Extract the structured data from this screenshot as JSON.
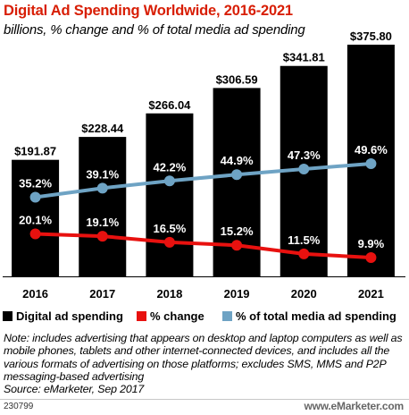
{
  "title": "Digital Ad Spending Worldwide, 2016-2021",
  "subtitle": "billions, % change and % of total media ad spending",
  "legend": {
    "spending": "Digital ad spending",
    "change": "% change",
    "share": "% of total media ad spending"
  },
  "note": "Note: includes advertising that appears on desktop and laptop computers as well as mobile phones, tablets and other internet-connected devices, and includes all the various formats of advertising on those platforms; excludes SMS, MMS and P2P messaging-based advertising",
  "source": "Source: eMarketer, Sep 2017",
  "footer": {
    "id": "230799",
    "brand": "www.eMarketer.com"
  },
  "colors": {
    "bar": "#000000",
    "change": "#e8110f",
    "share": "#6ea3c4",
    "title": "#d81e05"
  },
  "chart_data": {
    "type": "bar",
    "categories": [
      "2016",
      "2017",
      "2018",
      "2019",
      "2020",
      "2021"
    ],
    "series": [
      {
        "name": "Digital ad spending",
        "type": "bar",
        "values": [
          191.87,
          228.44,
          266.04,
          306.59,
          341.81,
          375.8
        ],
        "labels": [
          "$191.87",
          "$228.44",
          "$266.04",
          "$306.59",
          "$341.81",
          "$375.80"
        ]
      },
      {
        "name": "% change",
        "type": "line",
        "values": [
          20.1,
          19.1,
          16.5,
          15.2,
          11.5,
          9.9
        ],
        "labels": [
          "20.1%",
          "19.1%",
          "16.5%",
          "15.2%",
          "11.5%",
          "9.9%"
        ]
      },
      {
        "name": "% of total media ad spending",
        "type": "line",
        "values": [
          35.2,
          39.1,
          42.2,
          44.9,
          47.3,
          49.6
        ],
        "labels": [
          "35.2%",
          "39.1%",
          "42.2%",
          "44.9%",
          "47.3%",
          "49.6%"
        ]
      }
    ],
    "grid": false,
    "legend_position": "bottom"
  }
}
